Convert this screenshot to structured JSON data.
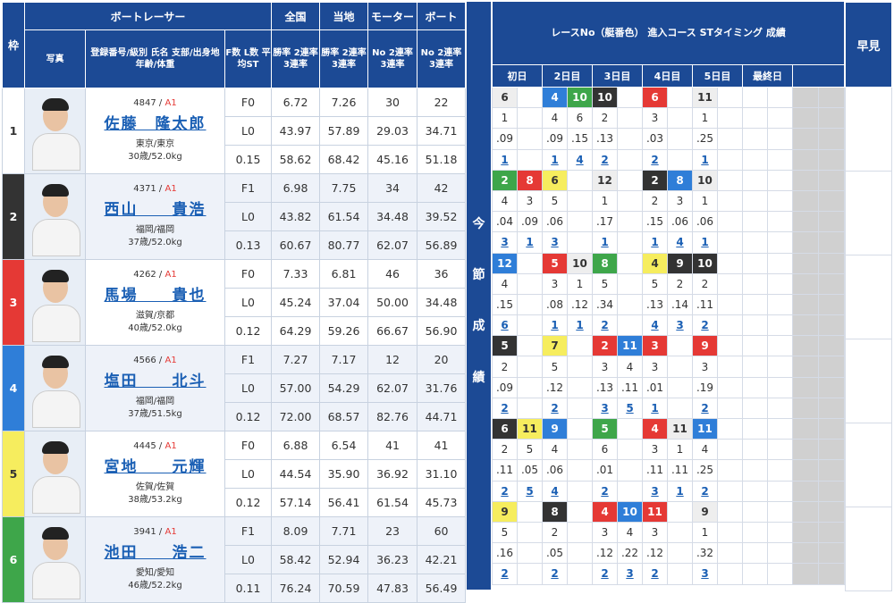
{
  "headers": {
    "waku": "枠",
    "boatracer": "ボートレーサー",
    "photo": "写真",
    "racer_info": "登録番号/級別 氏名 支部/出身地 年齢/体重",
    "fl_st": "F数 L数 平均ST",
    "zenkoku": "全国",
    "touchi": "当地",
    "motor": "モーター",
    "boat": "ボート",
    "rate_lines": "勝率 2連率 3連率",
    "no_lines": "No 2連率 3連率",
    "race_info": "レースNo（艇番色） 進入コース STタイミング 成績",
    "vertical": "今節成績",
    "hayami": "早見",
    "days": [
      "初日",
      "2日目",
      "3日目",
      "4日目",
      "5日目",
      "最終日"
    ]
  },
  "racers": [
    {
      "waku": "1",
      "reg": "4847",
      "cls": "A1",
      "name": "佐藤　隆太郎",
      "branch": "東京/東京",
      "age_wt": "30歳/52.0kg",
      "f": "F0",
      "l": "L0",
      "st": "0.15",
      "zen": [
        "6.72",
        "43.97",
        "58.62"
      ],
      "tou": [
        "7.26",
        "57.89",
        "68.42"
      ],
      "motor": [
        "30",
        "29.03",
        "45.16"
      ],
      "boat": [
        "22",
        "34.71",
        "51.18"
      ]
    },
    {
      "waku": "2",
      "reg": "4371",
      "cls": "A1",
      "name": "西山　　貴浩",
      "branch": "福岡/福岡",
      "age_wt": "37歳/52.0kg",
      "f": "F1",
      "l": "L0",
      "st": "0.13",
      "zen": [
        "6.98",
        "43.82",
        "60.67"
      ],
      "tou": [
        "7.75",
        "61.54",
        "80.77"
      ],
      "motor": [
        "34",
        "34.48",
        "62.07"
      ],
      "boat": [
        "42",
        "39.52",
        "56.89"
      ]
    },
    {
      "waku": "3",
      "reg": "4262",
      "cls": "A1",
      "name": "馬場　　貴也",
      "branch": "滋賀/京都",
      "age_wt": "40歳/52.0kg",
      "f": "F0",
      "l": "L0",
      "st": "0.12",
      "zen": [
        "7.33",
        "45.24",
        "64.29"
      ],
      "tou": [
        "6.81",
        "37.04",
        "59.26"
      ],
      "motor": [
        "46",
        "50.00",
        "66.67"
      ],
      "boat": [
        "36",
        "34.48",
        "56.90"
      ]
    },
    {
      "waku": "4",
      "reg": "4566",
      "cls": "A1",
      "name": "塩田　　北斗",
      "branch": "福岡/福岡",
      "age_wt": "37歳/51.5kg",
      "f": "F1",
      "l": "L0",
      "st": "0.12",
      "zen": [
        "7.27",
        "57.00",
        "72.00"
      ],
      "tou": [
        "7.17",
        "54.29",
        "68.57"
      ],
      "motor": [
        "12",
        "62.07",
        "82.76"
      ],
      "boat": [
        "20",
        "31.76",
        "44.71"
      ]
    },
    {
      "waku": "5",
      "reg": "4445",
      "cls": "A1",
      "name": "宮地　　元輝",
      "branch": "佐賀/佐賀",
      "age_wt": "38歳/53.2kg",
      "f": "F0",
      "l": "L0",
      "st": "0.12",
      "zen": [
        "6.88",
        "44.54",
        "57.14"
      ],
      "tou": [
        "6.54",
        "35.90",
        "56.41"
      ],
      "motor": [
        "41",
        "36.92",
        "61.54"
      ],
      "boat": [
        "41",
        "31.10",
        "45.73"
      ]
    },
    {
      "waku": "6",
      "reg": "3941",
      "cls": "A1",
      "name": "池田　　浩二",
      "branch": "愛知/愛知",
      "age_wt": "46歳/52.2kg",
      "f": "F1",
      "l": "L0",
      "st": "0.11",
      "zen": [
        "8.09",
        "58.42",
        "76.24"
      ],
      "tou": [
        "7.71",
        "52.94",
        "70.59"
      ],
      "motor": [
        "23",
        "36.23",
        "47.83"
      ],
      "boat": [
        "60",
        "42.21",
        "56.49"
      ]
    }
  ],
  "results": [
    [
      [
        "6",
        "1",
        ".09",
        "1",
        1
      ],
      [
        "",
        "",
        "",
        "",
        0
      ],
      [
        "4",
        "4",
        ".09",
        "1",
        4
      ],
      [
        "10",
        "6",
        ".15",
        "4",
        6
      ],
      [
        "10",
        "2",
        ".13",
        "2",
        2
      ],
      [
        "",
        "",
        "",
        "",
        0
      ],
      [
        "6",
        "3",
        ".03",
        "2",
        3
      ],
      [
        "",
        "",
        "",
        "",
        0
      ],
      [
        "11",
        "1",
        ".25",
        "1",
        1
      ],
      [
        "",
        "",
        "",
        "",
        0
      ],
      [
        "",
        "",
        "",
        "",
        0
      ],
      [
        "",
        "",
        "",
        "",
        0
      ]
    ],
    [
      [
        "2",
        "4",
        ".04",
        "3",
        6
      ],
      [
        "8",
        "3",
        ".09",
        "1",
        3
      ],
      [
        "6",
        "5",
        ".06",
        "3",
        5
      ],
      [
        "",
        "",
        "",
        "",
        0
      ],
      [
        "12",
        "1",
        ".17",
        "1",
        1
      ],
      [
        "",
        "",
        "",
        "",
        0
      ],
      [
        "2",
        "2",
        ".15",
        "1",
        2
      ],
      [
        "8",
        "3",
        ".06",
        "4",
        4
      ],
      [
        "10",
        "1",
        ".06",
        "1",
        1
      ],
      [
        "",
        "",
        "",
        "",
        0
      ],
      [
        "",
        "",
        "",
        "",
        0
      ],
      [
        "",
        "",
        "",
        "",
        0
      ]
    ],
    [
      [
        "12",
        "4",
        ".15",
        "6",
        4
      ],
      [
        "",
        "",
        "",
        "",
        0
      ],
      [
        "5",
        "3",
        ".08",
        "1",
        3
      ],
      [
        "10",
        "1",
        ".12",
        "1",
        1
      ],
      [
        "8",
        "5",
        ".34",
        "2",
        6
      ],
      [
        "",
        "",
        "",
        "",
        0
      ],
      [
        "4",
        "5",
        ".13",
        "4",
        5
      ],
      [
        "9",
        "2",
        ".14",
        "3",
        2
      ],
      [
        "10",
        "2",
        ".11",
        "2",
        2
      ],
      [
        "",
        "",
        "",
        "",
        0
      ],
      [
        "",
        "",
        "",
        "",
        0
      ],
      [
        "",
        "",
        "",
        "",
        0
      ]
    ],
    [
      [
        "5",
        "2",
        ".09",
        "2",
        2
      ],
      [
        "",
        "",
        "",
        "",
        0
      ],
      [
        "7",
        "5",
        ".12",
        "2",
        5
      ],
      [
        "",
        "",
        "",
        "",
        0
      ],
      [
        "2",
        "3",
        ".13",
        "3",
        3
      ],
      [
        "11",
        "4",
        ".11",
        "5",
        4
      ],
      [
        "3",
        "3",
        ".01",
        "1",
        3
      ],
      [
        "",
        "",
        "",
        "",
        0
      ],
      [
        "9",
        "3",
        ".19",
        "2",
        3
      ],
      [
        "",
        "",
        "",
        "",
        0
      ],
      [
        "",
        "",
        "",
        "",
        0
      ],
      [
        "",
        "",
        "",
        "",
        0
      ]
    ],
    [
      [
        "6",
        "2",
        ".11",
        "2",
        2
      ],
      [
        "11",
        "5",
        ".05",
        "5",
        5
      ],
      [
        "9",
        "4",
        ".06",
        "4",
        4
      ],
      [
        "",
        "",
        "",
        "",
        0
      ],
      [
        "5",
        "6",
        ".01",
        "2",
        6
      ],
      [
        "",
        "",
        "",
        "",
        0
      ],
      [
        "4",
        "3",
        ".11",
        "3",
        3
      ],
      [
        "11",
        "1",
        ".11",
        "1",
        1
      ],
      [
        "11",
        "4",
        ".25",
        "2",
        4
      ],
      [
        "",
        "",
        "",
        "",
        0
      ],
      [
        "",
        "",
        "",
        "",
        0
      ],
      [
        "",
        "",
        "",
        "",
        0
      ]
    ],
    [
      [
        "9",
        "5",
        ".16",
        "2",
        5
      ],
      [
        "",
        "",
        "",
        "",
        0
      ],
      [
        "8",
        "2",
        ".05",
        "2",
        2
      ],
      [
        "",
        "",
        "",
        "",
        0
      ],
      [
        "4",
        "3",
        ".12",
        "2",
        3
      ],
      [
        "10",
        "4",
        ".22",
        "3",
        4
      ],
      [
        "11",
        "3",
        ".12",
        "2",
        3
      ],
      [
        "",
        "",
        "",
        "",
        0
      ],
      [
        "9",
        "1",
        ".32",
        "3",
        1
      ],
      [
        "",
        "",
        "",
        "",
        0
      ],
      [
        "",
        "",
        "",
        "",
        0
      ],
      [
        "",
        "",
        "",
        "",
        0
      ]
    ]
  ],
  "colors": {
    "header": "#1c4a95",
    "boat1": "#ffffff",
    "boat2": "#333333",
    "boat3": "#e53935",
    "boat4": "#2f7ed8",
    "boat5": "#f6ed5e",
    "boat6": "#3ea64a",
    "link": "#1a5fb4"
  }
}
